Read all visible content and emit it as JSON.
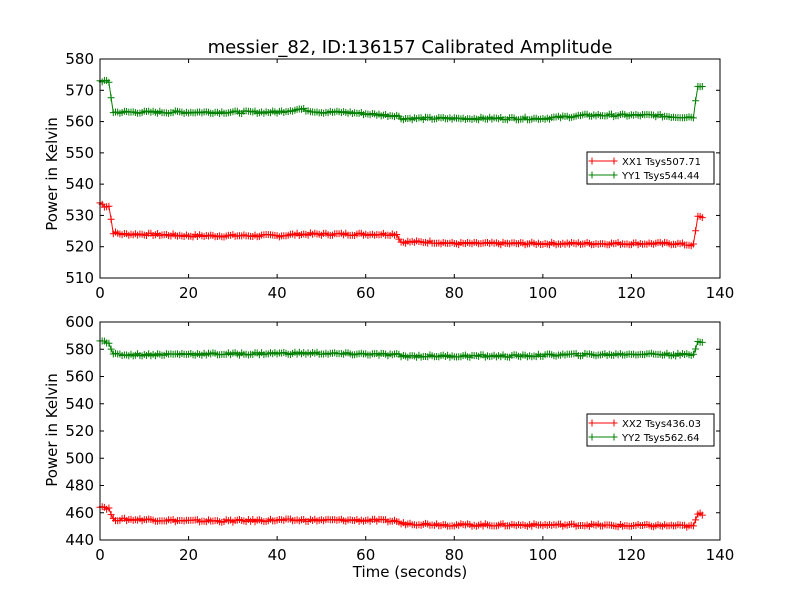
{
  "chart_data": [
    {
      "type": "line",
      "title": "messier_82, ID:136157 Calibrated Amplitude",
      "xlabel": "",
      "ylabel": "Power in Kelvin",
      "xlim": [
        0,
        140
      ],
      "ylim": [
        510,
        580
      ],
      "xticks": [
        "0",
        "20",
        "40",
        "60",
        "80",
        "100",
        "120",
        "140"
      ],
      "yticks": [
        "510",
        "520",
        "530",
        "540",
        "550",
        "560",
        "570",
        "580"
      ],
      "grid": false,
      "legend": "center-right",
      "x": [
        0,
        1,
        2,
        3,
        5,
        10,
        20,
        30,
        40,
        45,
        50,
        55,
        60,
        65,
        67,
        68,
        70,
        75,
        80,
        85,
        90,
        95,
        100,
        105,
        110,
        115,
        120,
        125,
        130,
        134,
        135,
        136
      ],
      "series": [
        {
          "name": "XX1 Tsys507.71",
          "color": "#ff0000",
          "values": [
            534,
            533,
            533,
            524.5,
            524,
            524,
            523.5,
            523.5,
            523.5,
            524,
            524,
            524,
            524,
            524,
            524,
            521.5,
            521.5,
            521.5,
            521,
            521,
            521,
            521,
            521,
            521,
            521,
            521,
            521,
            521,
            521,
            520.5,
            529.5,
            529.5
          ]
        },
        {
          "name": "YY1 Tsys544.44",
          "color": "#008000",
          "values": [
            573,
            573,
            572.5,
            563,
            563,
            563,
            563,
            563,
            563,
            564,
            563,
            563,
            562.5,
            562,
            562,
            561,
            561,
            561,
            561,
            561,
            561,
            561,
            561,
            561.5,
            562,
            562,
            562,
            562,
            561.5,
            561.5,
            571.5,
            571.5
          ]
        }
      ]
    },
    {
      "type": "line",
      "title": "",
      "xlabel": "Time (seconds)",
      "ylabel": "Power in Kelvin",
      "xlim": [
        0,
        140
      ],
      "ylim": [
        440,
        600
      ],
      "xticks": [
        "0",
        "20",
        "40",
        "60",
        "80",
        "100",
        "120",
        "140"
      ],
      "yticks": [
        "440",
        "460",
        "480",
        "500",
        "520",
        "540",
        "560",
        "580",
        "600"
      ],
      "grid": false,
      "legend": "center-right",
      "x": [
        0,
        1,
        2,
        3,
        5,
        10,
        20,
        30,
        40,
        45,
        50,
        55,
        60,
        65,
        67,
        68,
        70,
        75,
        80,
        85,
        90,
        95,
        100,
        105,
        110,
        115,
        120,
        125,
        130,
        134,
        135,
        136
      ],
      "series": [
        {
          "name": "XX2 Tsys436.03",
          "color": "#ff0000",
          "values": [
            465,
            464,
            463,
            455,
            455,
            455,
            454,
            454,
            454.5,
            454.5,
            454.5,
            454.5,
            454.5,
            454,
            454,
            452,
            452,
            451.5,
            451,
            451,
            451,
            451,
            451,
            451,
            451,
            450.5,
            450.5,
            450.5,
            450.5,
            450,
            459,
            459
          ]
        },
        {
          "name": "YY2 Tsys562.64",
          "color": "#008000",
          "values": [
            587,
            586,
            585,
            576,
            576,
            576,
            576.5,
            576.5,
            577,
            577,
            577,
            576.5,
            576.5,
            576,
            576,
            575,
            575,
            575,
            575,
            575,
            575,
            575,
            575.5,
            576,
            576,
            576,
            576.5,
            576.5,
            576,
            576,
            586,
            586
          ]
        }
      ]
    }
  ]
}
